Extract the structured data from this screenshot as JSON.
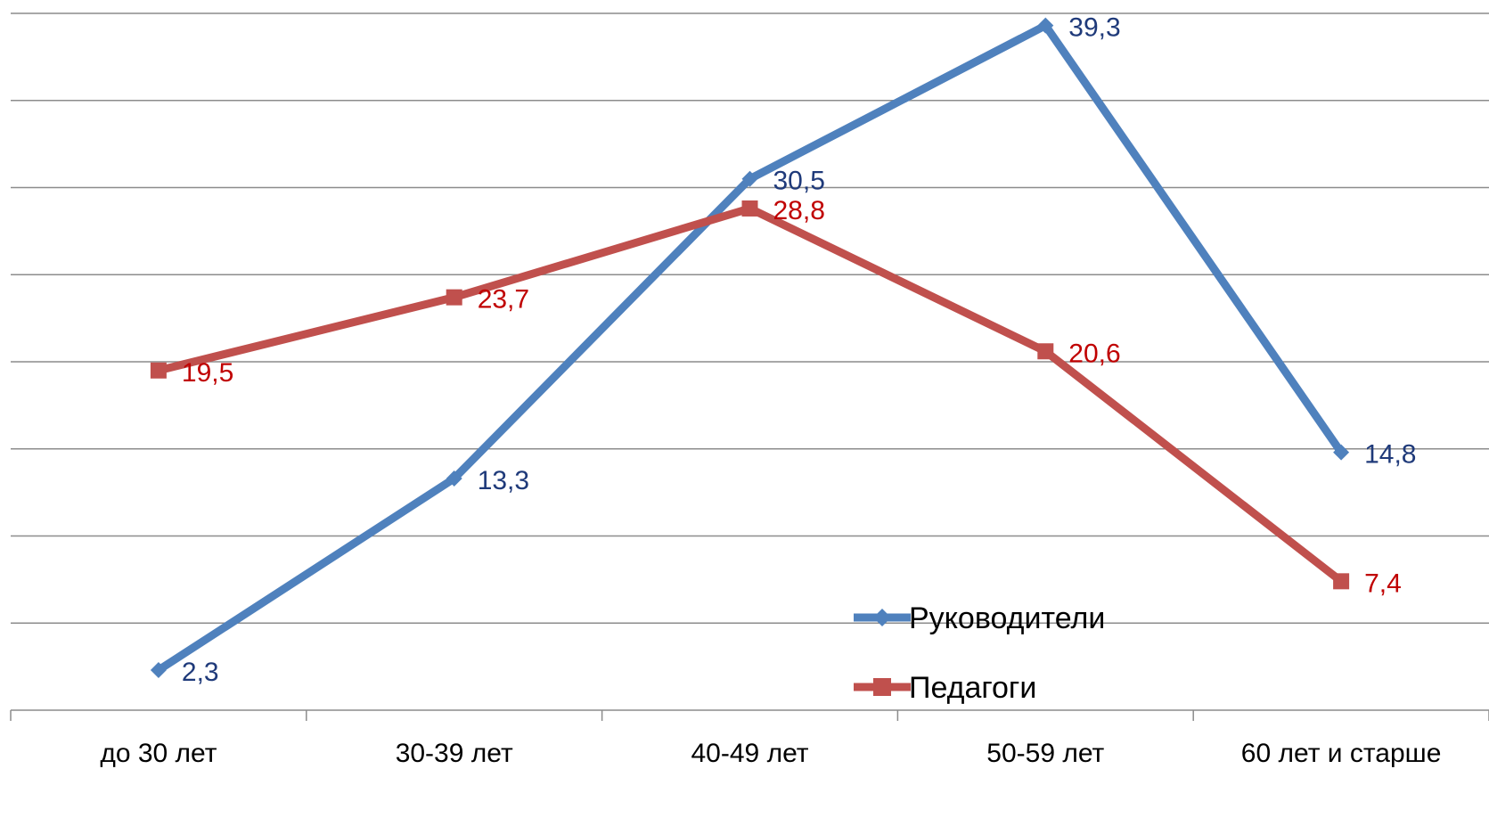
{
  "chart_data": {
    "type": "line",
    "categories": [
      "до 30 лет",
      "30-39 лет",
      "40-49 лет",
      "50-59 лет",
      "60 лет и старше"
    ],
    "series": [
      {
        "name": "Руководители",
        "values": [
          2.3,
          13.3,
          30.5,
          39.3,
          14.8
        ],
        "labels": [
          "2,3",
          "13,3",
          "30,5",
          "39,3",
          "14,8"
        ],
        "color": "#4F81BD",
        "label_color": "#1F3A7A",
        "marker": "diamond"
      },
      {
        "name": "Педагоги",
        "values": [
          19.5,
          23.7,
          28.8,
          20.6,
          7.4
        ],
        "labels": [
          "19,5",
          "23,7",
          "28,8",
          "20,6",
          "7,4"
        ],
        "color": "#C0504D",
        "label_color": "#C00000",
        "marker": "square"
      }
    ],
    "ylim": [
      0,
      40
    ],
    "y_grid_step": 5,
    "grid": true,
    "legend_position": "bottom-right inside plot",
    "xlabel": "",
    "ylabel": "",
    "title": ""
  }
}
